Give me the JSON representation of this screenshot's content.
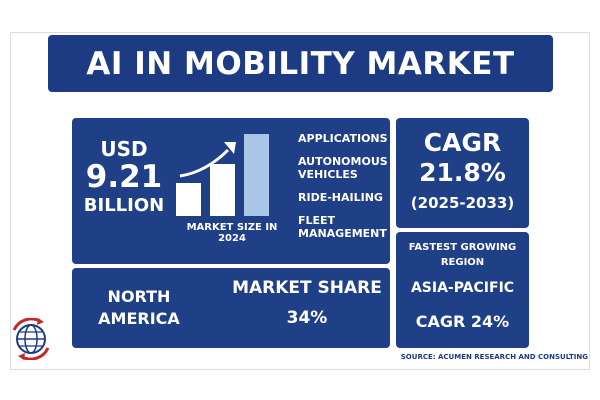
{
  "header": {
    "title": "AI IN MOBILITY MARKET"
  },
  "market_size": {
    "currency": "USD",
    "value": "9.21",
    "unit": "BILLION",
    "caption": "MARKET SIZE IN 2024",
    "bar_chart_icon": "bar-chart-icon",
    "arrow_icon": "trend-arrow-icon"
  },
  "applications": {
    "title": "APPLICATIONS",
    "items": [
      "AUTONOMOUS VEHICLES",
      "RIDE-HAILING",
      "FLEET MANAGEMENT"
    ]
  },
  "cagr": {
    "label": "CAGR",
    "value": "21.8%",
    "period": "(2025-2033)"
  },
  "market_share": {
    "region": "NORTH AMERICA",
    "label": "MARKET SHARE",
    "value": "34%"
  },
  "fastest_growing": {
    "label": "FASTEST GROWING REGION",
    "region": "ASIA-PACIFIC",
    "cagr": "CAGR 24%"
  },
  "source": "SOURCE: ACUMEN RESEARCH AND CONSULTING",
  "logo_icon": "globe-logo-icon",
  "colors": {
    "panel": "#1f3f86",
    "title_panel": "#1c3b82",
    "accent_bar": "#a9c6e8",
    "logo_red": "#c62828"
  }
}
